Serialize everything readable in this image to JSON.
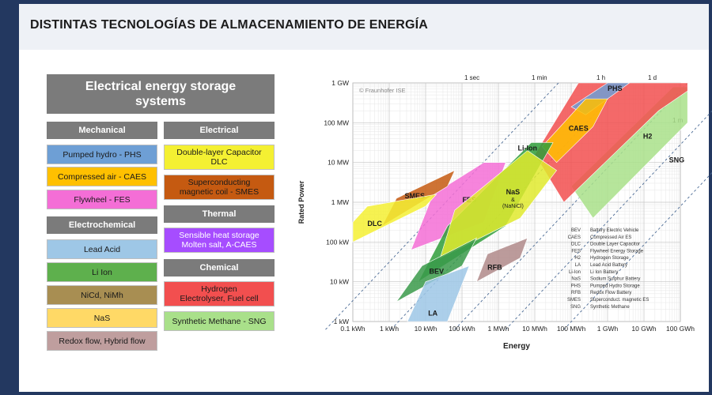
{
  "header": {
    "title": "DISTINTAS TECNOLOGÍAS DE ALMACENAMIENTO DE ENERGÍA"
  },
  "legend": {
    "title_line1": "Electrical energy storage",
    "title_line2": "systems",
    "categories": {
      "mechanical": "Mechanical",
      "electrical": "Electrical",
      "electrochemical": "Electrochemical",
      "thermal": "Thermal",
      "chemical": "Chemical"
    },
    "items": {
      "phs": {
        "label": "Pumped hydro - PHS",
        "color": "#6e9fd5"
      },
      "caes": {
        "label": "Compressed air - CAES",
        "color": "#ffc000"
      },
      "fes": {
        "label": "Flywheel - FES",
        "color": "#f46ed6"
      },
      "lead_acid": {
        "label": "Lead Acid",
        "color": "#9ec7e6"
      },
      "li_ion": {
        "label": "Li Ion",
        "color": "#5eb04d"
      },
      "nicd": {
        "label": "NiCd, NiMh",
        "color": "#a88e52"
      },
      "nas": {
        "label": "NaS",
        "color": "#ffd966"
      },
      "redox": {
        "label": "Redox flow, Hybrid flow",
        "color": "#bf9e9e"
      },
      "dlc_line1": "Double-layer Capacitor",
      "dlc_line2": "DLC",
      "dlc_color": "#f4f032",
      "smes_line1": "Superconducting",
      "smes_line2": "magnetic coil - SMES",
      "smes_color": "#c55a11",
      "thermal_line1": "Sensible heat storage",
      "thermal_line2": "Molten salt, A-CAES",
      "thermal_color": "#a64dff",
      "hydrogen_line1": "Hydrogen",
      "hydrogen_line2": "Electrolyser, Fuel cell",
      "hydrogen_color": "#f24f4f",
      "sng": {
        "label": "Synthetic Methane - SNG",
        "color": "#a9e08a"
      }
    }
  },
  "chart_data": {
    "type": "area",
    "xlabel": "Energy",
    "ylabel": "Rated Power",
    "watermark": "© Fraunhofer ISE",
    "x_ticks": [
      "0.1 kWh",
      "1 kWh",
      "10 kWh",
      "100 kWh",
      "1 MWh",
      "10 MWh",
      "100 MWh",
      "1 GWh",
      "10 GWh",
      "100 GWh"
    ],
    "y_ticks": [
      "1 kW",
      "10 kW",
      "100 kW",
      "1 MW",
      "10 MW",
      "100 MW",
      "1 GW"
    ],
    "discharge_time_lines": [
      "1 sec",
      "1 min",
      "1 h",
      "1 d",
      "1 m"
    ],
    "regions": [
      {
        "name": "SNG",
        "label": "SNG",
        "color": "#a9e08a"
      },
      {
        "name": "H2",
        "label": "H2",
        "color": "#f24f4f"
      },
      {
        "name": "PHS",
        "label": "PHS",
        "color": "#6e9fd5"
      },
      {
        "name": "CAES",
        "label": "CAES",
        "color": "#ffc000"
      },
      {
        "name": "FES",
        "label": "FES",
        "color": "#f46ed6"
      },
      {
        "name": "SMES",
        "label": "SMES",
        "color": "#c55a11"
      },
      {
        "name": "DLC",
        "label": "DLC",
        "color": "#f4f032"
      },
      {
        "name": "Li-Ion",
        "label": "Li-Ion",
        "color": "#2f9e3a"
      },
      {
        "name": "NaS",
        "label": "NaS",
        "sublabel1": "&",
        "sublabel2": "(NaNiCl)",
        "color": "#e0ea2e"
      },
      {
        "name": "RFB",
        "label": "RFB",
        "color": "#b08a8a"
      },
      {
        "name": "BEV",
        "label": "BEV",
        "color": "#3a9a4a"
      },
      {
        "name": "LA",
        "label": "LA",
        "color": "#9ec7e6"
      }
    ],
    "abbreviations": [
      [
        "BEV",
        "Battery Electric Vehicle"
      ],
      [
        "CAES",
        "Compressed Air ES"
      ],
      [
        "DLC",
        "Double Layer Capacitor"
      ],
      [
        "FES",
        "Flywheel Energy Storage"
      ],
      [
        "H2",
        "Hydrogen Storage"
      ],
      [
        "LA",
        "Lead Acid Battery"
      ],
      [
        "Li-Ion",
        "Li Ion Battery"
      ],
      [
        "NaS",
        "Sodium Sulphur Battery"
      ],
      [
        "PHS",
        "Pumped Hydro Storage"
      ],
      [
        "RFB",
        "Redox Flow Battery"
      ],
      [
        "SMES",
        "Superconduct. magnetic ES"
      ],
      [
        "SNG",
        "Synthetic Methane"
      ]
    ]
  }
}
